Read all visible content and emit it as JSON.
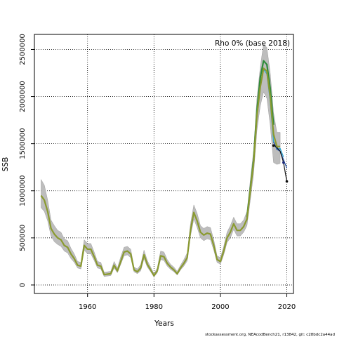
{
  "chart_data": {
    "type": "line",
    "title": "Rho 0% (base 2018)",
    "xlabel": "Years",
    "ylabel": "SSB",
    "xlim": [
      1944,
      2022
    ],
    "ylim": [
      -90000,
      2660000
    ],
    "xticks": [
      1960,
      1980,
      2000,
      2020
    ],
    "xtick_labels": [
      "1960",
      "1980",
      "2000",
      "2020"
    ],
    "yticks": [
      0,
      500000,
      1000000,
      1500000,
      2000000,
      2500000
    ],
    "ytick_labels": [
      "0",
      "500000",
      "1000000",
      "1500000",
      "2000000",
      "2500000"
    ],
    "grid": "dotted",
    "base_series": {
      "x": [
        1946,
        1947,
        1948,
        1949,
        1950,
        1951,
        1952,
        1953,
        1954,
        1955,
        1956,
        1957,
        1958,
        1959,
        1960,
        1961,
        1962,
        1963,
        1964,
        1965,
        1966,
        1967,
        1968,
        1969,
        1970,
        1971,
        1972,
        1973,
        1974,
        1975,
        1976,
        1977,
        1978,
        1979,
        1980,
        1981,
        1982,
        1983,
        1984,
        1985,
        1986,
        1987,
        1988,
        1989,
        1990,
        1991,
        1992,
        1993,
        1994,
        1995,
        1996,
        1997,
        1998,
        1999,
        2000,
        2001,
        2002,
        2003,
        2004,
        2005,
        2006,
        2007,
        2008,
        2009,
        2010,
        2011,
        2012,
        2013,
        2014,
        2015,
        2016,
        2017,
        2018
      ],
      "y": [
        950000,
        900000,
        780000,
        600000,
        540000,
        500000,
        480000,
        420000,
        400000,
        330000,
        280000,
        210000,
        200000,
        420000,
        380000,
        380000,
        300000,
        210000,
        200000,
        110000,
        115000,
        120000,
        210000,
        150000,
        250000,
        350000,
        360000,
        330000,
        160000,
        140000,
        180000,
        320000,
        220000,
        160000,
        100000,
        150000,
        310000,
        300000,
        230000,
        190000,
        160000,
        120000,
        180000,
        230000,
        290000,
        580000,
        770000,
        680000,
        560000,
        530000,
        550000,
        540000,
        420000,
        270000,
        250000,
        360000,
        500000,
        560000,
        650000,
        580000,
        580000,
        620000,
        700000,
        1000000,
        1300000,
        1800000,
        2100000,
        2300000,
        2270000,
        2000000,
        1600000,
        1470000,
        1470000
      ],
      "ci_lo": [
        820000,
        780000,
        680000,
        520000,
        460000,
        430000,
        410000,
        360000,
        340000,
        280000,
        240000,
        180000,
        170000,
        370000,
        330000,
        330000,
        260000,
        180000,
        170000,
        90000,
        95000,
        100000,
        180000,
        130000,
        220000,
        310000,
        320000,
        290000,
        140000,
        120000,
        150000,
        280000,
        190000,
        140000,
        85000,
        130000,
        270000,
        260000,
        200000,
        165000,
        140000,
        105000,
        160000,
        200000,
        255000,
        520000,
        700000,
        610000,
        500000,
        470000,
        490000,
        480000,
        370000,
        240000,
        220000,
        320000,
        450000,
        500000,
        590000,
        520000,
        520000,
        560000,
        630000,
        900000,
        1180000,
        1640000,
        1900000,
        2050000,
        1980000,
        1700000,
        1300000,
        1280000,
        1290000
      ],
      "ci_hi": [
        1120000,
        1060000,
        900000,
        690000,
        630000,
        580000,
        560000,
        490000,
        470000,
        390000,
        330000,
        250000,
        240000,
        480000,
        440000,
        440000,
        350000,
        250000,
        240000,
        135000,
        140000,
        145000,
        250000,
        180000,
        300000,
        400000,
        410000,
        380000,
        190000,
        170000,
        215000,
        370000,
        260000,
        190000,
        120000,
        180000,
        360000,
        350000,
        270000,
        220000,
        190000,
        145000,
        210000,
        270000,
        340000,
        650000,
        850000,
        760000,
        630000,
        600000,
        620000,
        610000,
        480000,
        310000,
        290000,
        410000,
        560000,
        630000,
        720000,
        650000,
        650000,
        690000,
        780000,
        1110000,
        1430000,
        1980000,
        2310000,
        2560000,
        2520000,
        2250000,
        1830000,
        1620000,
        1620000
      ]
    },
    "peels": [
      {
        "color": "#2e8b3a",
        "x": [
          2008,
          2009,
          2010,
          2011,
          2012,
          2013,
          2014,
          2015,
          2016
        ],
        "y": [
          720000,
          1020000,
          1330000,
          1850000,
          2200000,
          2380000,
          2340000,
          2090000,
          1700000
        ]
      },
      {
        "color": "#2aa5cf",
        "x": [
          2013,
          2014,
          2015,
          2016,
          2017,
          2018,
          2019
        ],
        "y": [
          2290000,
          2240000,
          1950000,
          1520000,
          1440000,
          1450000,
          1360000
        ]
      },
      {
        "color": "#1f4fa8",
        "x": [
          2016,
          2017,
          2018,
          2019,
          2020
        ],
        "y": [
          1520000,
          1440000,
          1420000,
          1330000,
          1240000
        ]
      },
      {
        "color": "#111111",
        "x": [
          2016,
          2017,
          2018,
          2019,
          2020
        ],
        "y": [
          1490000,
          1460000,
          1420000,
          1300000,
          1100000
        ]
      }
    ],
    "terminal_markers": [
      {
        "x": 2016,
        "y": 1480000,
        "color": "#111111"
      },
      {
        "x": 2019,
        "y": 1300000,
        "color": "#1f2a7a"
      },
      {
        "x": 2020,
        "y": 1100000,
        "color": "#111111"
      }
    ],
    "colors": {
      "base_line": "#8a9a2f",
      "ci_band": "#bdbdbd",
      "grid": "#000000"
    }
  },
  "footer": "stockassessment.org, NEAcodBench21, r13842, git: c28bdc2a44ad"
}
